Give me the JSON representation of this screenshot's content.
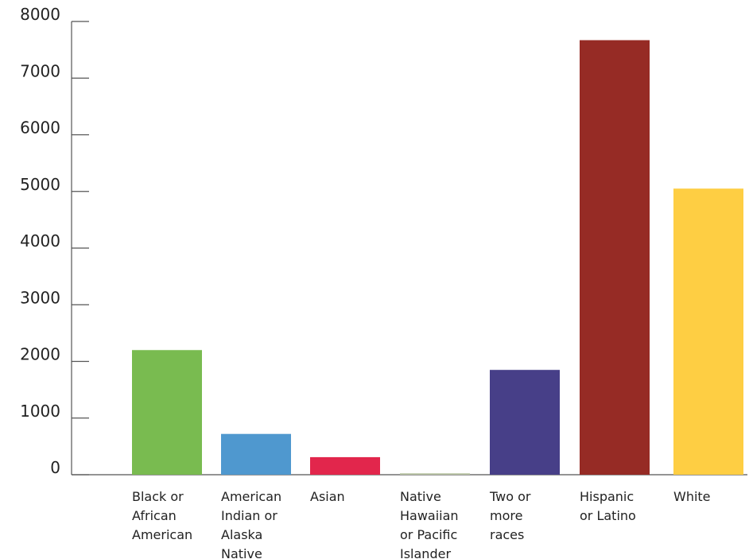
{
  "chart_data": {
    "type": "bar",
    "title": "",
    "xlabel": "",
    "ylabel": "",
    "ylim": [
      0,
      8000
    ],
    "yticks": [
      0,
      1000,
      2000,
      3000,
      4000,
      5000,
      6000,
      7000,
      8000
    ],
    "ytick_labels": [
      "0",
      "1000",
      "2000",
      "3000",
      "4000",
      "5000",
      "6000",
      "7000",
      "8000"
    ],
    "grid": false,
    "legend": "none",
    "categories": [
      [
        "Black or",
        "African",
        "American"
      ],
      [
        "American",
        "Indian or",
        "Alaska",
        "Native"
      ],
      [
        "Asian"
      ],
      [
        "Native",
        "Hawaiian",
        "or Pacific",
        "Islander"
      ],
      [
        "Two or",
        "more",
        "races"
      ],
      [
        "Hispanic",
        "or Latino"
      ],
      [
        "White"
      ]
    ],
    "values": [
      2200,
      720,
      310,
      25,
      1850,
      7670,
      5050
    ],
    "colors": [
      "#79bb50",
      "#4f98cf",
      "#e2264c",
      "#b9c4a3",
      "#473f88",
      "#962b25",
      "#fece43"
    ]
  }
}
